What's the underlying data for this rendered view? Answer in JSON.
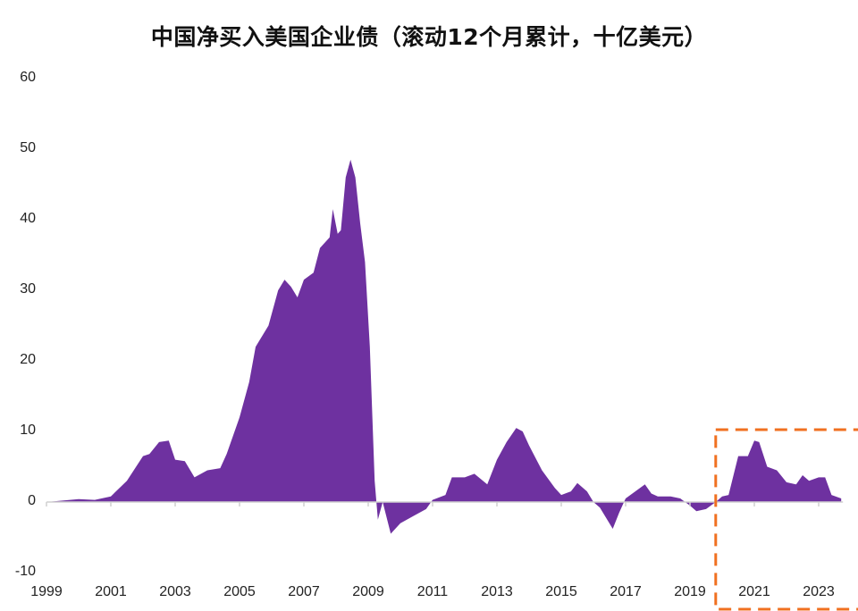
{
  "chart_data": {
    "type": "area",
    "title": "中国净买入美国企业债（滚动12个月累计，十亿美元）",
    "xlabel": "",
    "ylabel": "",
    "ylim": [
      -10,
      60
    ],
    "yticks": [
      60,
      50,
      40,
      30,
      20,
      10,
      0,
      -10
    ],
    "xlim": [
      1999,
      2024
    ],
    "xticks": [
      "1999",
      "2001",
      "2003",
      "2005",
      "2007",
      "2009",
      "2011",
      "2013",
      "2015",
      "2017",
      "2019",
      "2021",
      "2023"
    ],
    "grid": false,
    "legend": null,
    "series": [
      {
        "name": "中国净买入美国企业债",
        "color": "#6e31a0",
        "x": [
          1999.0,
          2000.0,
          2000.5,
          2001.0,
          2001.5,
          2002.0,
          2002.2,
          2002.5,
          2002.8,
          2003.0,
          2003.3,
          2003.6,
          2004.0,
          2004.4,
          2004.6,
          2005.0,
          2005.3,
          2005.5,
          2005.9,
          2006.2,
          2006.4,
          2006.6,
          2006.8,
          2007.0,
          2007.3,
          2007.5,
          2007.8,
          2007.9,
          2008.05,
          2008.15,
          2008.3,
          2008.45,
          2008.6,
          2008.75,
          2008.9,
          2009.05,
          2009.2,
          2009.3,
          2009.45,
          2009.7,
          2010.0,
          2010.4,
          2010.8,
          2011.0,
          2011.4,
          2011.6,
          2012.0,
          2012.3,
          2012.7,
          2013.0,
          2013.3,
          2013.6,
          2013.8,
          2014.0,
          2014.4,
          2014.8,
          2015.0,
          2015.3,
          2015.5,
          2015.8,
          2016.0,
          2016.2,
          2016.6,
          2016.8,
          2017.0,
          2017.3,
          2017.6,
          2017.8,
          2018.0,
          2018.4,
          2018.7,
          2019.0,
          2019.2,
          2019.5,
          2019.8,
          2020.0,
          2020.2,
          2020.5,
          2020.8,
          2021.0,
          2021.15,
          2021.4,
          2021.7,
          2022.0,
          2022.3,
          2022.5,
          2022.7,
          2023.0,
          2023.2,
          2023.4,
          2023.7
        ],
        "values": [
          0,
          0.4,
          0.3,
          0.8,
          3.0,
          6.5,
          6.8,
          8.5,
          8.7,
          6.0,
          5.8,
          3.5,
          4.5,
          4.8,
          6.8,
          12.0,
          17.0,
          22.0,
          25.0,
          30.0,
          31.5,
          30.5,
          29.0,
          31.5,
          32.5,
          36.0,
          37.5,
          41.5,
          38.0,
          38.5,
          46.0,
          48.5,
          46.0,
          39.5,
          34.0,
          22.0,
          3.0,
          -2.5,
          0.0,
          -4.5,
          -3.0,
          -2.0,
          -1.0,
          0.3,
          1.0,
          3.5,
          3.5,
          4.0,
          2.5,
          6.0,
          8.5,
          10.5,
          10.0,
          8.0,
          4.5,
          2.0,
          1.0,
          1.5,
          2.7,
          1.5,
          0.0,
          -0.8,
          -3.8,
          -1.5,
          0.5,
          1.5,
          2.5,
          1.2,
          0.8,
          0.8,
          0.5,
          -0.5,
          -1.3,
          -1.0,
          0.0,
          0.8,
          1.0,
          6.5,
          6.5,
          8.7,
          8.5,
          5.0,
          4.5,
          2.8,
          2.5,
          3.8,
          3.0,
          3.5,
          3.5,
          1.0,
          0.5
        ]
      }
    ],
    "annotations": [
      {
        "type": "dashed-rectangle",
        "color": "#f07020",
        "x_range": [
          2019.8,
          2024.0
        ],
        "y_range": [
          -16,
          10.5
        ],
        "label": ""
      }
    ]
  },
  "colors": {
    "area_fill": "#6e31a0",
    "highlight_box": "#f07020",
    "axis": "#d0d0d0",
    "text": "#222222"
  }
}
